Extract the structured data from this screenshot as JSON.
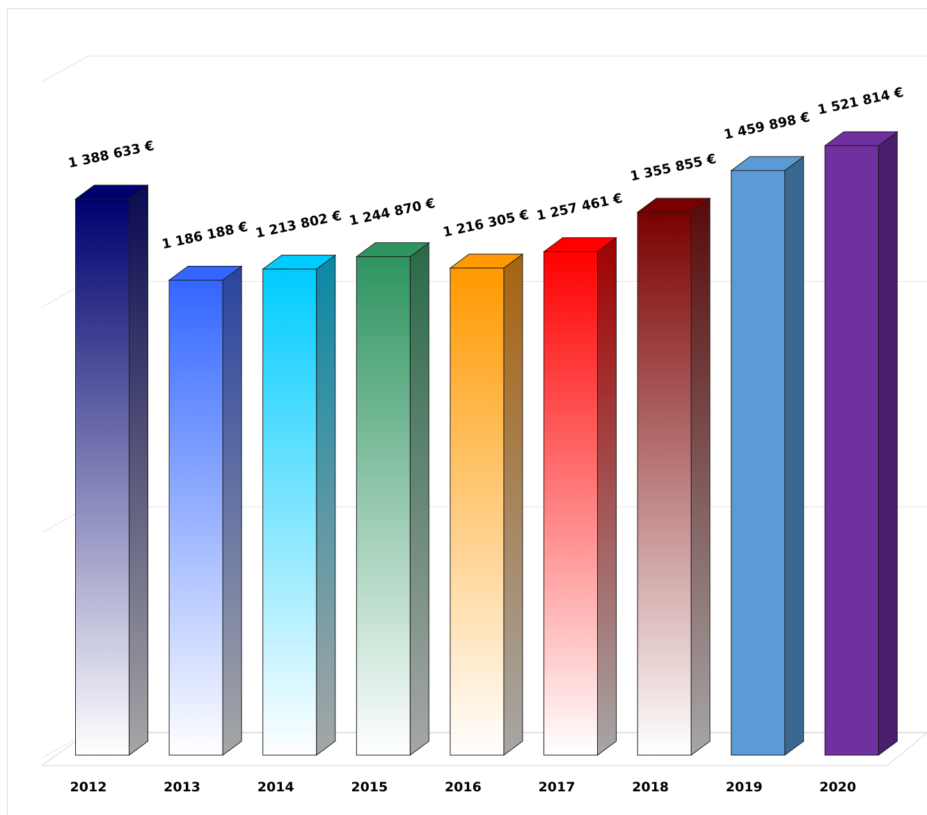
{
  "chart_data": {
    "type": "bar",
    "style": "3d-column",
    "title": "",
    "xlabel": "",
    "ylabel": "",
    "ylim": [
      0,
      1650000
    ],
    "grid": true,
    "legend": "none",
    "categories": [
      "2012",
      "2013",
      "2014",
      "2015",
      "2016",
      "2017",
      "2018",
      "2019",
      "2020"
    ],
    "values": [
      1388633,
      1186188,
      1213802,
      1244870,
      1216305,
      1257461,
      1355855,
      1459898,
      1521814
    ],
    "data_labels": [
      "1 388 633 €",
      "1 186 188 €",
      "1 213 802 €",
      "1 244 870 €",
      "1 216 305 €",
      "1 257 461 €",
      "1 355 855 €",
      "1 459 898 €",
      "1 521 814 €"
    ],
    "colors": [
      {
        "top": "#00006e",
        "bottom": "#ffffff",
        "side": "#0a0a50",
        "gradient": true
      },
      {
        "top": "#3366ff",
        "bottom": "#ffffff",
        "side": "#2a44a0",
        "gradient": true
      },
      {
        "top": "#00ccff",
        "bottom": "#ffffff",
        "side": "#0a88a5",
        "gradient": true
      },
      {
        "top": "#2e9460",
        "bottom": "#ffffff",
        "side": "#2a6a48",
        "gradient": true
      },
      {
        "top": "#ff9900",
        "bottom": "#ffffff",
        "side": "#a86410",
        "gradient": true
      },
      {
        "top": "#ff0000",
        "bottom": "#ffffff",
        "side": "#a00000",
        "gradient": true
      },
      {
        "top": "#7a0000",
        "bottom": "#ffffff",
        "side": "#580a0a",
        "gradient": true
      },
      {
        "top": "#5b9bd5",
        "bottom": "#5b9bd5",
        "side": "#3a6890",
        "gradient": false
      },
      {
        "top": "#7030a0",
        "bottom": "#7030a0",
        "side": "#4a1e6a",
        "gradient": false
      }
    ]
  }
}
